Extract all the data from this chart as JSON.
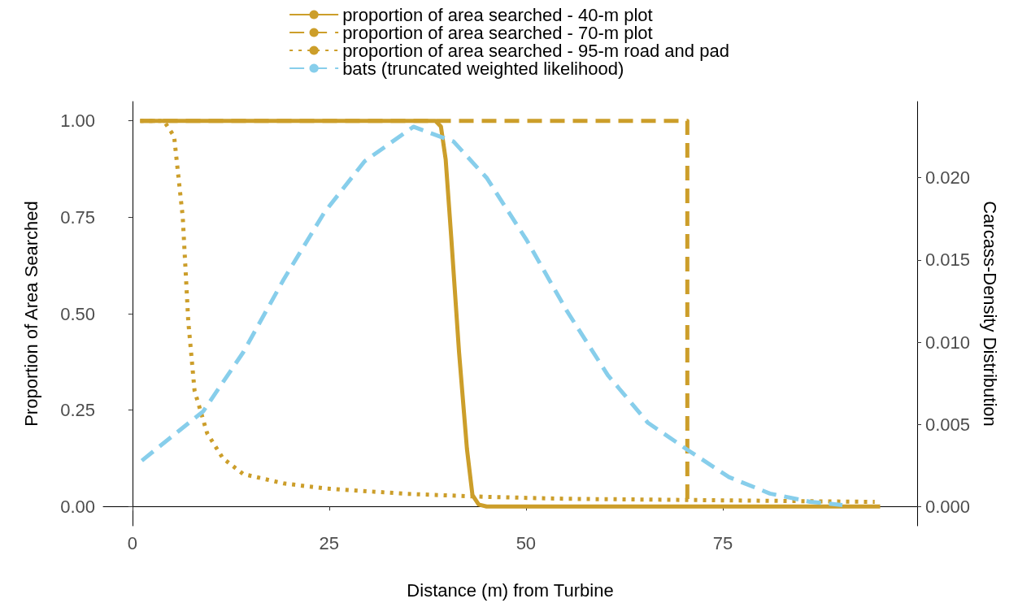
{
  "chart_data": {
    "type": "line",
    "xlabel": "Distance (m) from Turbine",
    "ylabel": "Proportion of Area Searched",
    "y2label": "Carcass-Density Distribution",
    "xlim": [
      -3.7,
      99.7
    ],
    "xticks": [
      0,
      25,
      50,
      75
    ],
    "ylim": [
      -0.05,
      1.05
    ],
    "yticks": [
      {
        "value": 0,
        "label": "0.00"
      },
      {
        "value": 0.25,
        "label": "0.25"
      },
      {
        "value": 0.5,
        "label": "0.50"
      },
      {
        "value": 0.75,
        "label": "0.75"
      },
      {
        "value": 1,
        "label": "1.00"
      }
    ],
    "y2lim": [
      -0.00116,
      0.02463
    ],
    "y2ticks": [
      {
        "value": 0,
        "label": "0.000"
      },
      {
        "value": 0.005,
        "label": "0.005"
      },
      {
        "value": 0.01,
        "label": "0.010"
      },
      {
        "value": 0.015,
        "label": "0.015"
      },
      {
        "value": 0.02,
        "label": "0.020"
      }
    ],
    "grid": false,
    "legend": "top",
    "marker": "none",
    "series": [
      {
        "name": "proportion of area searched - 40-m plot",
        "color": "#cc9e2a",
        "line_style": "solid",
        "x": [
          1,
          38.5,
          39.2,
          39.8,
          40.5,
          41.5,
          42.5,
          43.2,
          44,
          45,
          95
        ],
        "values": [
          1,
          1,
          0.985,
          0.9,
          0.7,
          0.4,
          0.15,
          0.03,
          0.005,
          0,
          0
        ]
      },
      {
        "name": "proportion of area searched - 70-m plot",
        "color": "#cc9e2a",
        "line_style": "dashed",
        "x": [
          1,
          70.5,
          70.5
        ],
        "values": [
          1,
          1,
          0
        ]
      },
      {
        "name": "proportion of area searched - 95-m road and pad",
        "color": "#cc9e2a",
        "line_style": "dotted",
        "x": [
          1,
          4,
          5.3,
          6.4,
          7.1,
          7.9,
          9.5,
          11.5,
          14.1,
          19.2,
          24.4,
          34.7,
          45,
          55,
          65.5,
          94.3
        ],
        "values": [
          1,
          1,
          0.96,
          0.75,
          0.48,
          0.3,
          0.19,
          0.125,
          0.084,
          0.06,
          0.047,
          0.033,
          0.025,
          0.02,
          0.018,
          0.012
        ]
      },
      {
        "name": "bats (truncated weighted likelihood)",
        "color": "#87ceeb",
        "line_style": "dashed",
        "axis": "y2",
        "x": [
          1.2,
          9,
          14.1,
          19.2,
          24.4,
          29.5,
          35.7,
          40.8,
          45,
          50.1,
          55.2,
          60.4,
          65.5,
          70.7,
          75.8,
          81,
          86.1,
          90.2
        ],
        "values": [
          0.0028,
          0.0058,
          0.0094,
          0.0138,
          0.0179,
          0.021,
          0.0231,
          0.0222,
          0.02,
          0.0162,
          0.0119,
          0.008,
          0.0051,
          0.0034,
          0.0018,
          0.0008,
          0.0003,
          0.0001
        ]
      }
    ]
  }
}
